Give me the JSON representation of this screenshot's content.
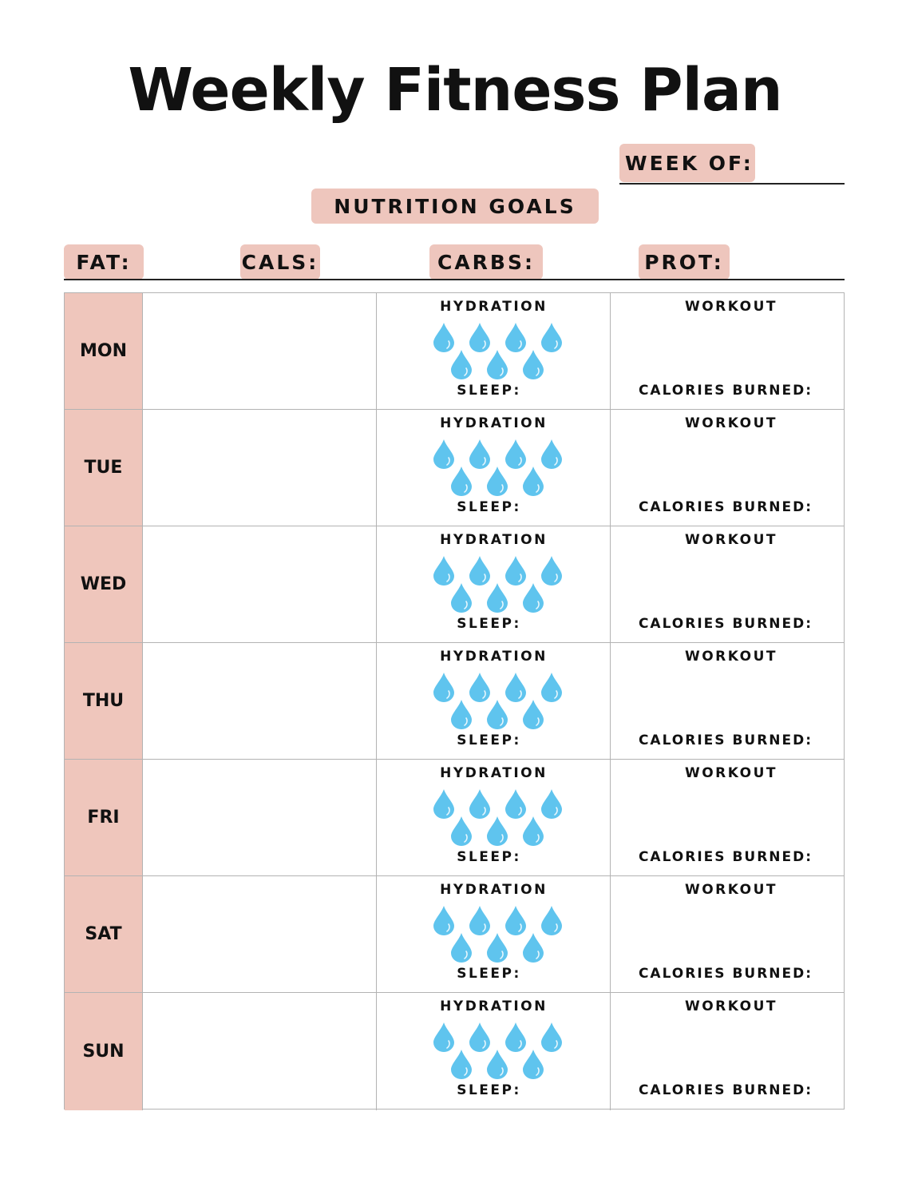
{
  "title": "Weekly Fitness Plan",
  "week_of_label": "WEEK OF:",
  "nutrition_goals_label": "NUTRITION GOALS",
  "goals": {
    "fat": "FAT:",
    "cals": "CALS:",
    "carbs": "CARBS:",
    "prot": "PROT:"
  },
  "labels": {
    "hydration": "HYDRATION",
    "sleep": "SLEEP:",
    "workout": "WORKOUT",
    "calories_burned": "CALORIES BURNED:"
  },
  "days": [
    "MON",
    "TUE",
    "WED",
    "THU",
    "FRI",
    "SAT",
    "SUN"
  ],
  "water_drops_per_day": 7,
  "colors": {
    "accent_pink": "#efc6bc",
    "water_drop": "#5fc4ee",
    "grid_line": "#b3b3b3"
  }
}
